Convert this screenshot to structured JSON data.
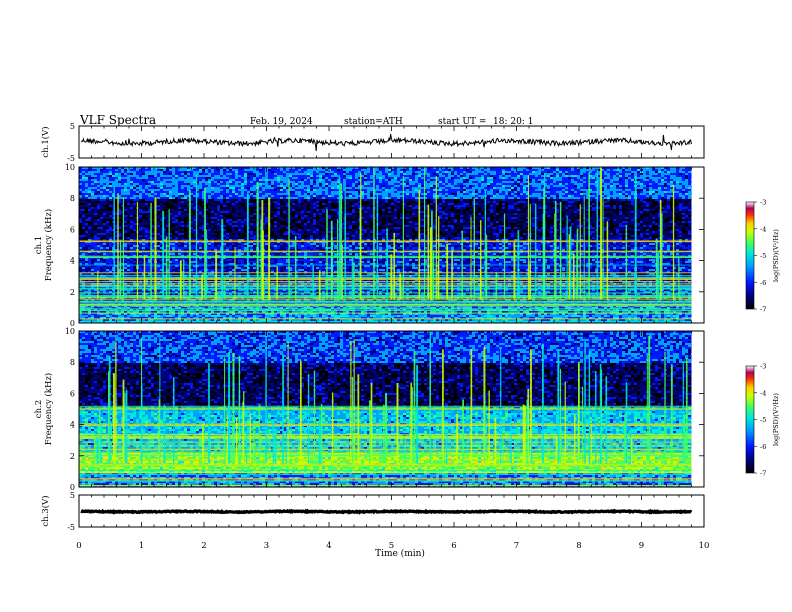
{
  "header": {
    "title": "VLF  Spectra",
    "date": "Feb. 19, 2024",
    "station": "station=ATH",
    "start_label": "start  UT  =",
    "start_time": "18: 20: 1"
  },
  "chart_data": [
    {
      "type": "line",
      "name": "waveform-ch1",
      "ylabel": "ch.1(V)",
      "ylim": [
        -5,
        5
      ],
      "yticks": [
        "5",
        "-5"
      ],
      "xlim": [
        0,
        10
      ],
      "data_end_min": 9.8,
      "baseline_v": 0,
      "line_color": "#000000"
    },
    {
      "type": "heatmap",
      "name": "spectrogram-ch1",
      "ylabel": "ch.1\nFrequency  (kHz)",
      "ylim": [
        0,
        10
      ],
      "yticks": [
        "0",
        "2",
        "4",
        "6",
        "8",
        "10"
      ],
      "xlim": [
        0,
        10
      ],
      "data_end_min": 9.8,
      "bands_khz": [
        {
          "f": [
            0,
            1.2
          ],
          "level": -5.6,
          "note": "strong low-frequency bands"
        },
        {
          "f": [
            1.2,
            2.8
          ],
          "level": -5.9
        },
        {
          "f": [
            2.8,
            5.5
          ],
          "level": -6.1
        },
        {
          "f": [
            5.5,
            8.0
          ],
          "level": -6.5
        },
        {
          "f": [
            8.0,
            10.0
          ],
          "level": -5.8
        }
      ],
      "colorbar": {
        "label": "log(PSD)(V²/Hz)",
        "range": [
          -7,
          -3
        ],
        "ticks": [
          "-3",
          "-4",
          "-5",
          "-6",
          "-7"
        ]
      }
    },
    {
      "type": "heatmap",
      "name": "spectrogram-ch2",
      "ylabel": "ch.2\nFrequency  (kHz)",
      "ylim": [
        0,
        10
      ],
      "yticks": [
        "0",
        "2",
        "4",
        "6",
        "8",
        "10"
      ],
      "xlim": [
        0,
        10
      ],
      "data_end_min": 9.8,
      "bands_khz": [
        {
          "f": [
            0,
            1.0
          ],
          "level": -5.7
        },
        {
          "f": [
            1.0,
            2.4
          ],
          "level": -4.6,
          "note": "yellow/red band near 2 kHz"
        },
        {
          "f": [
            2.4,
            5.2
          ],
          "level": -5.4
        },
        {
          "f": [
            5.2,
            8.0
          ],
          "level": -6.5
        },
        {
          "f": [
            8.0,
            10.0
          ],
          "level": -5.9
        }
      ],
      "colorbar": {
        "label": "log(PSD)(V²/Hz)",
        "range": [
          -7,
          -3
        ],
        "ticks": [
          "-3",
          "-4",
          "-5",
          "-6",
          "-7"
        ]
      }
    },
    {
      "type": "line",
      "name": "waveform-ch3",
      "ylabel": "ch.3(V)",
      "ylim": [
        -5,
        5
      ],
      "yticks": [
        "5",
        "-5"
      ],
      "xlim": [
        0,
        10
      ],
      "data_end_min": 9.8,
      "baseline_v": -0.2,
      "line_color": "#000000"
    }
  ],
  "xaxis": {
    "label": "Time  (min)",
    "ticks": [
      "0",
      "1",
      "2",
      "3",
      "4",
      "5",
      "6",
      "7",
      "8",
      "9",
      "10"
    ],
    "range": [
      0,
      10
    ]
  },
  "colors": {
    "colormap": [
      "#000000",
      "#00007a",
      "#0018ff",
      "#00a0ff",
      "#00e8d8",
      "#40ff60",
      "#c8ff00",
      "#ffd000",
      "#ff3000",
      "#b00060",
      "#ffffff"
    ]
  }
}
